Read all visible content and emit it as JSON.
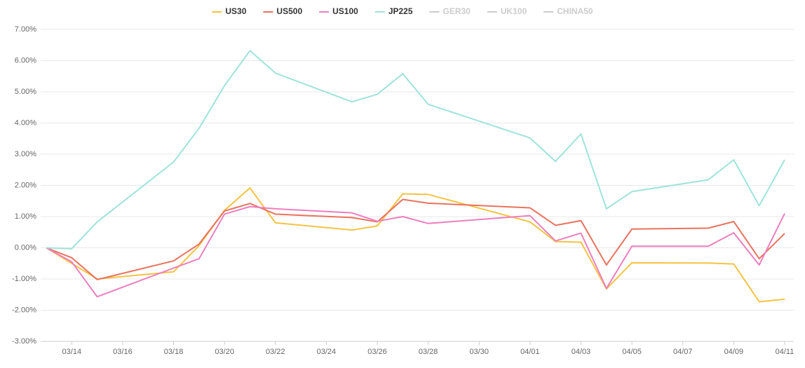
{
  "chart_data": {
    "type": "line",
    "x": [
      "03/13",
      "03/14",
      "03/15",
      "03/18",
      "03/19",
      "03/20",
      "03/21",
      "03/22",
      "03/25",
      "03/26",
      "03/27",
      "03/28",
      "04/01",
      "04/02",
      "04/03",
      "04/04",
      "04/05",
      "04/08",
      "04/09",
      "04/10",
      "04/11"
    ],
    "xlim": [
      "03/13",
      "04/11"
    ],
    "xticks": [
      "03/14",
      "03/16",
      "03/18",
      "03/20",
      "03/22",
      "03/24",
      "03/26",
      "03/28",
      "03/30",
      "04/01",
      "04/03",
      "04/05",
      "04/07",
      "04/09",
      "04/11"
    ],
    "ylim": [
      -3,
      7
    ],
    "yticks": [
      {
        "value": -3,
        "label": "-3.00%"
      },
      {
        "value": -2,
        "label": "-2.00%"
      },
      {
        "value": -1,
        "label": "-1.00%"
      },
      {
        "value": 0,
        "label": "0.00%"
      },
      {
        "value": 1,
        "label": "1.00%"
      },
      {
        "value": 2,
        "label": "2.00%"
      },
      {
        "value": 3,
        "label": "3.00%"
      },
      {
        "value": 4,
        "label": "4.00%"
      },
      {
        "value": 5,
        "label": "5.00%"
      },
      {
        "value": 6,
        "label": "6.00%"
      },
      {
        "value": 7,
        "label": "7.00%"
      }
    ],
    "grid": true,
    "legend": "top",
    "series": [
      {
        "name": "US30",
        "color": "#f5c342",
        "visible": true,
        "values": [
          0,
          -0.5,
          -1.0,
          -0.77,
          0.07,
          1.2,
          1.92,
          0.8,
          0.57,
          0.7,
          1.73,
          1.71,
          0.83,
          0.2,
          0.18,
          -1.32,
          -0.48,
          -0.49,
          -0.52,
          -1.73,
          -1.65
        ]
      },
      {
        "name": "US500",
        "color": "#e8735f",
        "visible": true,
        "values": [
          0,
          -0.32,
          -1.02,
          -0.42,
          0.12,
          1.18,
          1.42,
          1.08,
          0.97,
          0.83,
          1.55,
          1.43,
          1.28,
          0.72,
          0.87,
          -0.55,
          0.6,
          0.63,
          0.84,
          -0.35,
          0.46
        ]
      },
      {
        "name": "US100",
        "color": "#ec7fbf",
        "visible": true,
        "values": [
          0,
          -0.45,
          -1.57,
          -0.65,
          -0.35,
          1.08,
          1.32,
          1.25,
          1.12,
          0.85,
          1.0,
          0.78,
          1.03,
          0.22,
          0.47,
          -1.3,
          0.05,
          0.05,
          0.48,
          -0.55,
          1.1
        ]
      },
      {
        "name": "JP225",
        "color": "#9fe3d9",
        "visible": true,
        "values": [
          0,
          -0.03,
          0.83,
          2.75,
          3.83,
          5.2,
          6.32,
          5.6,
          4.68,
          4.92,
          5.58,
          4.6,
          3.52,
          2.77,
          3.65,
          1.25,
          1.8,
          2.18,
          2.82,
          1.35,
          2.82
        ]
      },
      {
        "name": "GER30",
        "color": "#cccccc",
        "visible": false
      },
      {
        "name": "UK100",
        "color": "#cccccc",
        "visible": false
      },
      {
        "name": "CHINA50",
        "color": "#cccccc",
        "visible": false
      }
    ]
  }
}
